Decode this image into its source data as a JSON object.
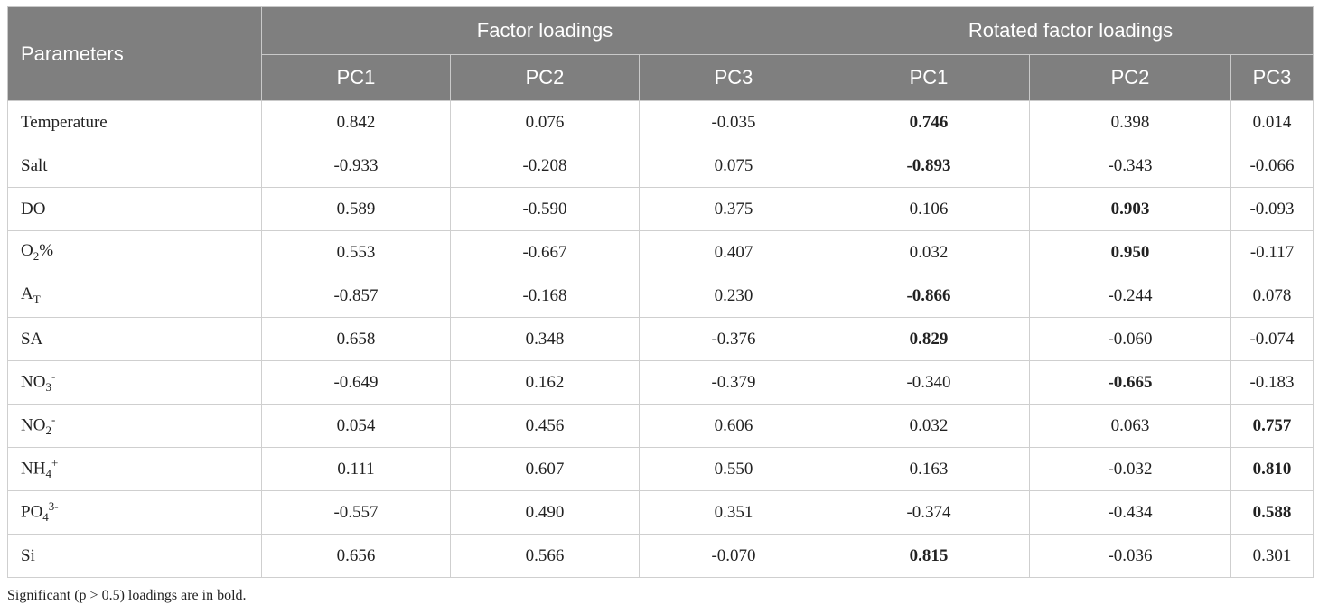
{
  "table": {
    "header": {
      "parameters": "Parameters",
      "group1": "Factor loadings",
      "group2": "Rotated factor loadings",
      "sub": [
        "PC1",
        "PC2",
        "PC3",
        "PC1",
        "PC2",
        "PC3"
      ]
    },
    "rows": [
      {
        "name": {
          "base": "Temperature"
        },
        "values": [
          "0.842",
          "0.076",
          "-0.035",
          "0.746",
          "0.398",
          "0.014"
        ],
        "bold": [
          3
        ]
      },
      {
        "name": {
          "base": "Salt"
        },
        "values": [
          "-0.933",
          "-0.208",
          "0.075",
          "-0.893",
          "-0.343",
          "-0.066"
        ],
        "bold": [
          3
        ]
      },
      {
        "name": {
          "base": "DO"
        },
        "values": [
          "0.589",
          "-0.590",
          "0.375",
          "0.106",
          "0.903",
          "-0.093"
        ],
        "bold": [
          4
        ]
      },
      {
        "name": {
          "base": "O",
          "sub": "2",
          "tail": "%"
        },
        "values": [
          "0.553",
          "-0.667",
          "0.407",
          "0.032",
          "0.950",
          "-0.117"
        ],
        "bold": [
          4
        ]
      },
      {
        "name": {
          "base": "A",
          "sub": "T"
        },
        "values": [
          "-0.857",
          "-0.168",
          "0.230",
          "-0.866",
          "-0.244",
          "0.078"
        ],
        "bold": [
          3
        ]
      },
      {
        "name": {
          "base": "SA"
        },
        "values": [
          "0.658",
          "0.348",
          "-0.376",
          "0.829",
          "-0.060",
          "-0.074"
        ],
        "bold": [
          3
        ]
      },
      {
        "name": {
          "base": "NO",
          "sub": "3",
          "sup": "-"
        },
        "values": [
          "-0.649",
          "0.162",
          "-0.379",
          "-0.340",
          "-0.665",
          "-0.183"
        ],
        "bold": [
          4
        ]
      },
      {
        "name": {
          "base": "NO",
          "sub": "2",
          "sup": "-"
        },
        "values": [
          "0.054",
          "0.456",
          "0.606",
          "0.032",
          "0.063",
          "0.757"
        ],
        "bold": [
          5
        ]
      },
      {
        "name": {
          "base": "NH",
          "sub": "4",
          "sup": "+"
        },
        "values": [
          "0.111",
          "0.607",
          "0.550",
          "0.163",
          "-0.032",
          "0.810"
        ],
        "bold": [
          5
        ]
      },
      {
        "name": {
          "base": "PO",
          "sub": "4",
          "sup": "3-"
        },
        "values": [
          "-0.557",
          "0.490",
          "0.351",
          "-0.374",
          "-0.434",
          "0.588"
        ],
        "bold": [
          5
        ]
      },
      {
        "name": {
          "base": "Si"
        },
        "values": [
          "0.656",
          "0.566",
          "-0.070",
          "0.815",
          "-0.036",
          "0.301"
        ],
        "bold": [
          3
        ]
      }
    ]
  },
  "footnote": "Significant (p > 0.5) loadings are in bold."
}
